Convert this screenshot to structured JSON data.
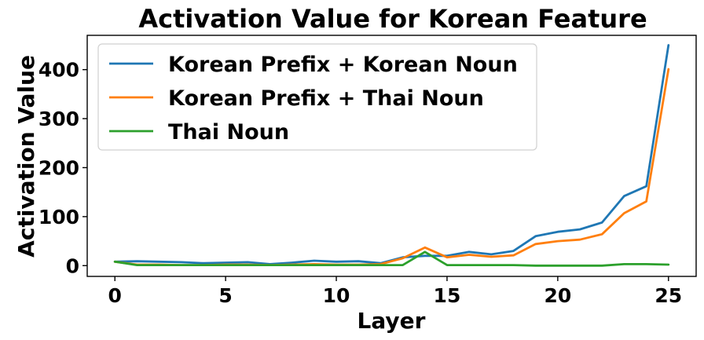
{
  "chart_data": {
    "type": "line",
    "title": "Activation Value for Korean Feature",
    "xlabel": "Layer",
    "ylabel": "Activation Value",
    "xlim": [
      -1.25,
      26.25
    ],
    "ylim": [
      -22,
      470
    ],
    "xticks": [
      0,
      5,
      10,
      15,
      20,
      25
    ],
    "yticks": [
      0,
      100,
      200,
      300,
      400
    ],
    "grid": false,
    "legend_position": "upper-left",
    "x": [
      0,
      1,
      2,
      3,
      4,
      5,
      6,
      7,
      8,
      9,
      10,
      11,
      12,
      13,
      14,
      15,
      16,
      17,
      18,
      19,
      20,
      21,
      22,
      23,
      24,
      25
    ],
    "series": [
      {
        "name": "Korean Prefix + Korean Noun",
        "color": "#1f77b4",
        "values": [
          8,
          9,
          8,
          7,
          5,
          6,
          7,
          3,
          6,
          10,
          8,
          9,
          5,
          17,
          20,
          20,
          28,
          23,
          30,
          60,
          69,
          74,
          88,
          142,
          162,
          450
        ]
      },
      {
        "name": "Korean Prefix + Thai Noun",
        "color": "#ff7f0e",
        "values": [
          8,
          2,
          2,
          1,
          1,
          2,
          2,
          1,
          2,
          3,
          2,
          2,
          3,
          15,
          37,
          17,
          22,
          18,
          21,
          44,
          50,
          53,
          64,
          107,
          131,
          401
        ]
      },
      {
        "name": "Thai Noun",
        "color": "#2ca02c",
        "values": [
          8,
          1,
          1,
          1,
          1,
          1,
          1,
          1,
          1,
          1,
          1,
          1,
          1,
          1,
          28,
          1,
          1,
          1,
          1,
          0,
          0,
          0,
          0,
          3,
          3,
          2
        ]
      }
    ]
  }
}
